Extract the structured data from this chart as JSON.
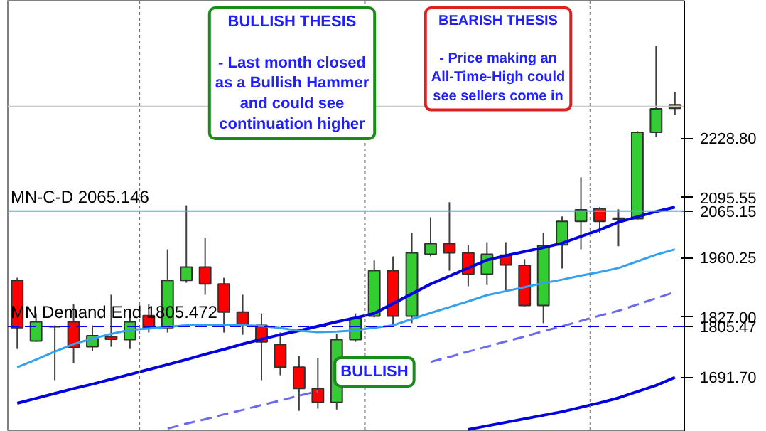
{
  "chart_data": {
    "type": "candlestick",
    "categories": [
      null,
      null,
      null,
      null,
      null,
      null,
      null,
      null,
      null,
      null,
      null,
      null,
      null,
      null,
      null,
      null,
      null,
      null,
      null,
      null,
      null,
      null,
      null,
      null,
      null,
      null,
      null,
      null,
      null,
      null,
      null,
      null,
      null,
      null,
      null,
      null
    ],
    "ohlc": [
      [
        1909,
        1915,
        1755,
        1803
      ],
      [
        1773,
        1835,
        1771,
        1816
      ],
      [
        1805,
        1808,
        1685,
        1805
      ],
      [
        1816,
        1856,
        1723,
        1758
      ],
      [
        1760,
        1808,
        1750,
        1785
      ],
      [
        1783,
        1877,
        1760,
        1777
      ],
      [
        1776,
        1845,
        1755,
        1816
      ],
      [
        1830,
        1856,
        1792,
        1803
      ],
      [
        1803,
        1979,
        1792,
        1909
      ],
      [
        1909,
        2078,
        1904,
        1939
      ],
      [
        1939,
        2005,
        1877,
        1901
      ],
      [
        1901,
        1915,
        1792,
        1838
      ],
      [
        1838,
        1877,
        1787,
        1808
      ],
      [
        1808,
        1835,
        1685,
        1771
      ],
      [
        1765,
        1792,
        1696,
        1714
      ],
      [
        1714,
        1739,
        1616,
        1666
      ],
      [
        1666,
        1734,
        1621,
        1635
      ],
      [
        1635,
        1789,
        1619,
        1776
      ],
      [
        1776,
        1835,
        1771,
        1824
      ],
      [
        1829,
        1954,
        1826,
        1931
      ],
      [
        1931,
        1963,
        1805,
        1829
      ],
      [
        1829,
        2016,
        1813,
        1971
      ],
      [
        1968,
        2051,
        1963,
        1992
      ],
      [
        1992,
        2085,
        1931,
        1971
      ],
      [
        1971,
        1989,
        1896,
        1923
      ],
      [
        1923,
        1995,
        1899,
        1968
      ],
      [
        1966,
        1995,
        1883,
        1944
      ],
      [
        1943,
        1957,
        1851,
        1853
      ],
      [
        1853,
        2016,
        1813,
        1987
      ],
      [
        1989,
        2053,
        1936,
        2042
      ],
      [
        2042,
        2141,
        1979,
        2068
      ],
      [
        2071,
        2074,
        2016,
        2042
      ],
      [
        2046,
        2069,
        1986,
        2049
      ],
      [
        2048,
        2245,
        2046,
        2242
      ],
      [
        2242,
        2437,
        2231,
        2295
      ],
      [
        2296,
        2333,
        2282,
        2304
      ]
    ],
    "series": [
      {
        "type": "line",
        "color": "#0000e0",
        "values": [
          1633,
          1644,
          1655,
          1666,
          1676,
          1687,
          1698,
          1709,
          1720,
          1731,
          1743,
          1754,
          1766,
          1777,
          1787,
          1796,
          1806,
          1816,
          1825,
          1835,
          1857,
          1879,
          1901,
          1919,
          1937,
          1955,
          1965,
          1974,
          1983,
          1993,
          2008,
          2023,
          2040,
          2052,
          2064,
          2074
        ]
      },
      {
        "type": "line",
        "color": "#33a0f0",
        "values": [
          1714,
          1731,
          1749,
          1766,
          1778,
          1789,
          1798,
          1801,
          1805,
          1808,
          1808,
          1808,
          1808,
          1807,
          1802,
          1796,
          1793,
          1794,
          1797,
          1803,
          1808,
          1822,
          1836,
          1849,
          1862,
          1876,
          1885,
          1894,
          1903,
          1911,
          1920,
          1928,
          1937,
          1952,
          1967,
          1979
        ]
      },
      {
        "type": "line",
        "color": "#0000e0",
        "values": [
          null,
          null,
          null,
          null,
          null,
          null,
          null,
          null,
          null,
          null,
          null,
          null,
          null,
          null,
          null,
          null,
          null,
          null,
          null,
          null,
          null,
          null,
          null,
          null,
          1574,
          1582,
          1590,
          1598,
          1606,
          1614,
          1624,
          1634,
          1645,
          1659,
          1673,
          1691
        ]
      },
      {
        "type": "line",
        "color": "#6a6af0",
        "line_style": "dashed",
        "values": [
          null,
          null,
          null,
          null,
          null,
          null,
          null,
          null,
          1576,
          1587,
          1597,
          1608,
          1618,
          1629,
          1639,
          1650,
          1660,
          null,
          null,
          null,
          null,
          null,
          1726,
          1737,
          1749,
          1760,
          1772,
          1783,
          1795,
          1806,
          1818,
          1830,
          1841,
          1855,
          1869,
          1883
        ]
      }
    ],
    "ylim": [
      1569,
      2538
    ],
    "yticks": [
      {
        "value": 2228.8,
        "label": "2228.80"
      },
      2095.55,
      1960.25,
      {
        "value": 1827,
        "label": "1827.00"
      },
      {
        "value": 1691.7,
        "label": "1691.70"
      },
      {
        "value": 2065.146,
        "label": "2065.15"
      },
      {
        "value": 1805.472,
        "label": "1805.47"
      }
    ],
    "ref_lines": [
      {
        "axis": "y",
        "value": 2065.146,
        "label": "MN-C-D 2065.146",
        "color": "#33bbee",
        "line_style": "solid"
      },
      {
        "axis": "y",
        "value": 1805.472,
        "label": "MN Demand End 1805.472",
        "color": "#0000ee",
        "line_style": "dashed"
      },
      {
        "axis": "y",
        "value": 2300,
        "color": "#c8c8c8",
        "line_style": "solid"
      }
    ],
    "annotations": [
      "BULLISH THESIS\n\n- Last month closed\nas a Bullish Hammer\nand could see\ncontinuation higher",
      "BEARISH THESIS\n\n- Price making an\nAll-Time-High could\nsee sellers come in",
      "BULLISH"
    ],
    "tick_labels": "y",
    "grid": false
  }
}
